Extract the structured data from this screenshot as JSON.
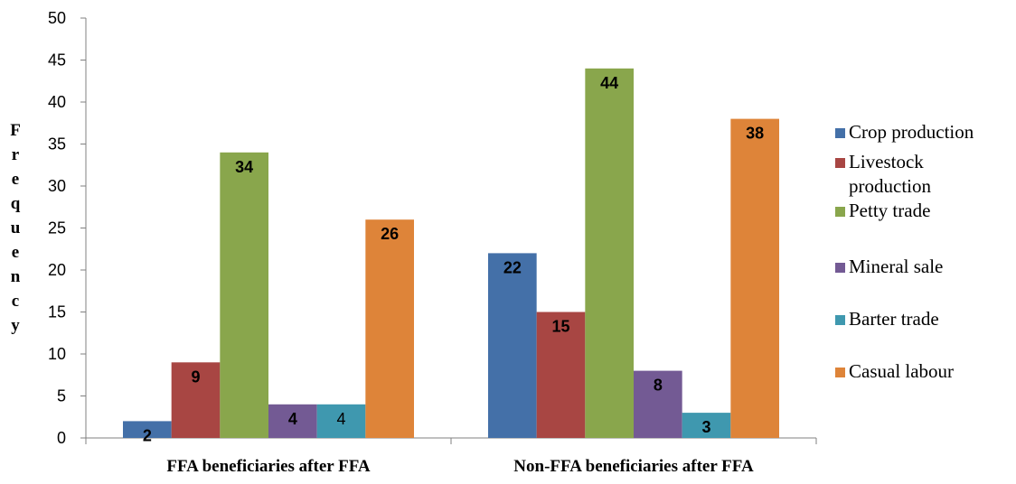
{
  "chart_data": {
    "type": "bar",
    "categories": [
      "FFA beneficiaries after FFA",
      "Non-FFA beneficiaries after FFA"
    ],
    "series": [
      {
        "name": "Crop production",
        "values": [
          2,
          22
        ],
        "color": "#4470A8"
      },
      {
        "name": "Livestock production",
        "values": [
          9,
          15
        ],
        "color": "#A84643"
      },
      {
        "name": "Petty trade",
        "values": [
          34,
          44
        ],
        "color": "#89A64C"
      },
      {
        "name": "Mineral sale",
        "values": [
          4,
          8
        ],
        "color": "#735A94"
      },
      {
        "name": "Barter trade",
        "values": [
          4,
          3
        ],
        "color": "#3F98AF"
      },
      {
        "name": "Casual labour",
        "values": [
          26,
          38
        ],
        "color": "#DE8439"
      }
    ],
    "ylabel": "Frequency",
    "xlabel": "",
    "ylim": [
      0,
      50
    ],
    "yticks": [
      0,
      5,
      10,
      15,
      20,
      25,
      30,
      35,
      40,
      45,
      50
    ],
    "grid": false,
    "legend_position": "right"
  }
}
